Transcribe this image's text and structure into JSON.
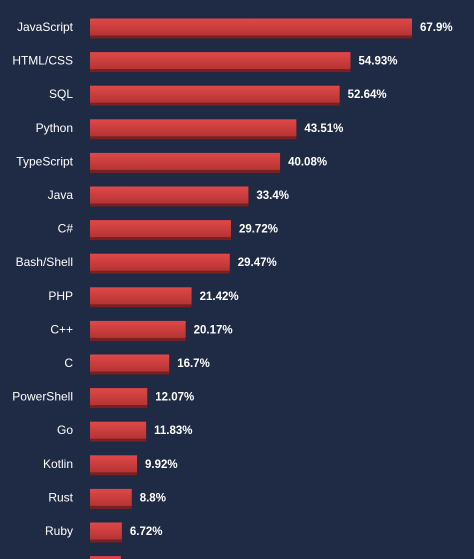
{
  "chart_data": {
    "type": "bar",
    "orientation": "horizontal",
    "title": "",
    "xlabel": "",
    "ylabel": "",
    "xlim": [
      0,
      67.9
    ],
    "grid": false,
    "categories": [
      "JavaScript",
      "HTML/CSS",
      "SQL",
      "Python",
      "TypeScript",
      "Java",
      "C#",
      "Bash/Shell",
      "PHP",
      "C++",
      "C",
      "PowerShell",
      "Go",
      "Kotlin",
      "Rust",
      "Ruby"
    ],
    "values": [
      67.9,
      54.93,
      52.64,
      43.51,
      40.08,
      33.4,
      29.72,
      29.47,
      21.42,
      20.17,
      16.7,
      12.07,
      11.83,
      9.92,
      8.8,
      6.72
    ],
    "value_labels": [
      "67.9%",
      "54.93%",
      "52.64%",
      "43.51%",
      "40.08%",
      "33.4%",
      "29.72%",
      "29.47%",
      "21.42%",
      "20.17%",
      "16.7%",
      "12.07%",
      "11.83%",
      "9.92%",
      "8.8%",
      "6.72%"
    ],
    "partial_next_value": 6.5,
    "colors": {
      "background": "#1f2a44",
      "bar_top": "#e04848",
      "bar_bottom": "#b53434",
      "bar_shadow": "#7a2020",
      "text": "#ffffff"
    }
  }
}
